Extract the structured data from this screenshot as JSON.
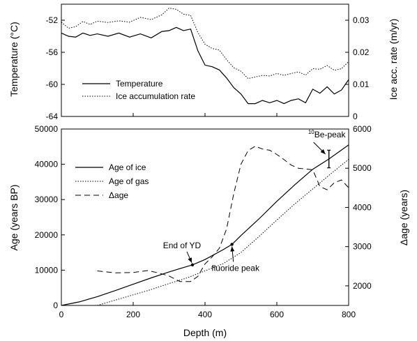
{
  "chart_data": [
    {
      "type": "line",
      "panel": "top",
      "xlim": [
        0,
        800
      ],
      "ylim": [
        -64,
        -50
      ],
      "y2lim": [
        0,
        0.035
      ],
      "ylabel": "Temperature (°C)",
      "y2label": "Ice acc. rate (m/yr)",
      "y_ticks": [
        -52,
        -56,
        -60,
        -64
      ],
      "y2_ticks": [
        0.03,
        0.02,
        0.01,
        0
      ],
      "legend_position": "center-left",
      "series": [
        {
          "name": "Temperature",
          "style": "solid",
          "axis": "left",
          "x": [
            0,
            20,
            40,
            60,
            80,
            100,
            130,
            160,
            190,
            220,
            250,
            280,
            300,
            320,
            340,
            360,
            380,
            400,
            420,
            440,
            460,
            480,
            500,
            520,
            540,
            560,
            580,
            600,
            620,
            640,
            660,
            680,
            700,
            720,
            740,
            760,
            780,
            800
          ],
          "y": [
            -53.6,
            -54.0,
            -54.1,
            -53.6,
            -53.9,
            -53.7,
            -54.0,
            -53.6,
            -54.1,
            -53.7,
            -54.2,
            -53.4,
            -53.3,
            -52.9,
            -53.3,
            -53.1,
            -55.8,
            -57.6,
            -57.8,
            -58.2,
            -59.2,
            -60.4,
            -61.2,
            -62.4,
            -62.4,
            -62.0,
            -62.3,
            -62.0,
            -62.4,
            -62.0,
            -61.8,
            -62.3,
            -60.6,
            -61.1,
            -60.3,
            -61.2,
            -60.7,
            -59.4
          ]
        },
        {
          "name": "Ice accumulation rate",
          "style": "dotted",
          "axis": "right",
          "x": [
            0,
            20,
            40,
            60,
            80,
            100,
            130,
            160,
            190,
            220,
            250,
            280,
            300,
            320,
            340,
            360,
            380,
            400,
            420,
            440,
            460,
            480,
            500,
            520,
            540,
            560,
            580,
            600,
            620,
            640,
            660,
            680,
            700,
            720,
            740,
            760,
            780,
            800
          ],
          "y": [
            0.0294,
            0.0275,
            0.028,
            0.0296,
            0.0287,
            0.0297,
            0.0293,
            0.0298,
            0.0294,
            0.0309,
            0.0302,
            0.0317,
            0.0338,
            0.0334,
            0.0319,
            0.0315,
            0.0262,
            0.0225,
            0.0212,
            0.0207,
            0.0177,
            0.0152,
            0.0141,
            0.0118,
            0.0123,
            0.0128,
            0.0126,
            0.0134,
            0.0128,
            0.0134,
            0.0139,
            0.0129,
            0.0149,
            0.0147,
            0.0159,
            0.0144,
            0.0149,
            0.0171
          ]
        }
      ]
    },
    {
      "type": "line",
      "panel": "bottom",
      "xlabel": "Depth (m)",
      "xlim": [
        0,
        800
      ],
      "x_ticks": [
        0,
        200,
        400,
        600,
        800
      ],
      "ylim": [
        0,
        50000
      ],
      "y2lim": [
        1500,
        6000
      ],
      "ylabel": "Age (years BP)",
      "y2label": "Δage (years)",
      "y_ticks": [
        0,
        10000,
        20000,
        30000,
        40000,
        50000
      ],
      "y2_ticks": [
        2000,
        3000,
        4000,
        5000,
        6000
      ],
      "legend_position": "center-left",
      "series": [
        {
          "name": "Age of ice",
          "style": "solid",
          "axis": "left",
          "x": [
            0,
            50,
            100,
            150,
            200,
            250,
            300,
            365,
            400,
            450,
            475,
            500,
            550,
            600,
            650,
            700,
            745,
            800
          ],
          "y": [
            0,
            1000,
            2500,
            4200,
            6000,
            7800,
            9500,
            11500,
            13000,
            15800,
            17300,
            19800,
            24500,
            29500,
            34200,
            38600,
            41500,
            45500
          ]
        },
        {
          "name": "Age of gas",
          "style": "dotted",
          "axis": "left",
          "x": [
            100,
            150,
            200,
            250,
            300,
            350,
            400,
            450,
            500,
            550,
            600,
            650,
            700,
            750,
            800
          ],
          "y": [
            0,
            1500,
            3000,
            4500,
            6200,
            7800,
            9800,
            11800,
            15000,
            19500,
            24200,
            28800,
            33000,
            37300,
            41400
          ]
        },
        {
          "name": "Δage",
          "style": "dashed",
          "axis": "right",
          "x": [
            100,
            150,
            200,
            240,
            270,
            300,
            330,
            360,
            380,
            400,
            420,
            440,
            460,
            480,
            500,
            520,
            540,
            560,
            580,
            600,
            620,
            640,
            660,
            680,
            700,
            720,
            740,
            760,
            780,
            800
          ],
          "y": [
            2380,
            2330,
            2340,
            2390,
            2330,
            2250,
            2110,
            2110,
            2240,
            2560,
            2740,
            2960,
            3450,
            4350,
            5100,
            5450,
            5560,
            5490,
            5460,
            5350,
            5220,
            5080,
            5000,
            4980,
            4960,
            4530,
            4450,
            4630,
            4700,
            4500
          ]
        }
      ],
      "annotations": [
        {
          "text": "End of YD",
          "x": 365,
          "y": 11500
        },
        {
          "text": "fluoride peak",
          "x": 475,
          "y": 17300
        },
        {
          "text": "10",
          "text_tail": "Be-peak",
          "x": 745,
          "y": 41500,
          "error": [
            39000,
            44000
          ]
        }
      ]
    }
  ]
}
